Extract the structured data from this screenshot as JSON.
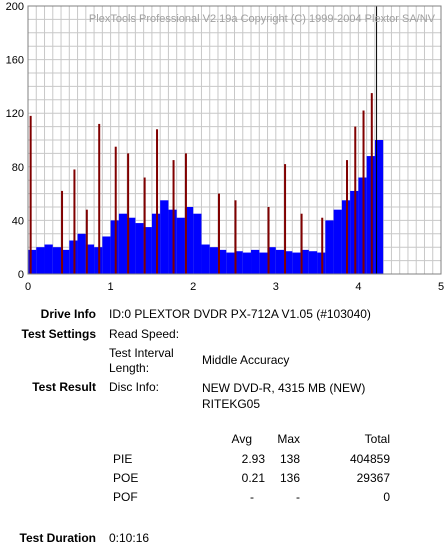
{
  "chart_data": {
    "type": "bar",
    "title": "PlexTools Professional V2.19a Copyright (C) 1999-2004 Plextor SA/NV",
    "xlim": [
      0,
      5
    ],
    "ylim": [
      0,
      200
    ],
    "x_ticks": [
      "0",
      "1",
      "2",
      "3",
      "4",
      "5"
    ],
    "y_ticks": [
      "0",
      "40",
      "80",
      "120",
      "160",
      "200"
    ],
    "grid": true,
    "end_x": 4.22,
    "series": [
      {
        "color": "#0000ff",
        "x": [
          0.0,
          0.1,
          0.2,
          0.3,
          0.4,
          0.5,
          0.6,
          0.7,
          0.8,
          0.9,
          1.0,
          1.1,
          1.2,
          1.3,
          1.4,
          1.5,
          1.6,
          1.7,
          1.8,
          1.9,
          2.0,
          2.1,
          2.2,
          2.3,
          2.4,
          2.5,
          2.6,
          2.7,
          2.8,
          2.9,
          3.0,
          3.1,
          3.2,
          3.3,
          3.4,
          3.5,
          3.6,
          3.7,
          3.8,
          3.9,
          4.0,
          4.1,
          4.2
        ],
        "values": [
          18,
          20,
          22,
          20,
          18,
          25,
          30,
          22,
          20,
          28,
          40,
          45,
          42,
          38,
          35,
          45,
          55,
          48,
          42,
          50,
          45,
          22,
          20,
          18,
          16,
          17,
          16,
          18,
          16,
          20,
          18,
          17,
          16,
          18,
          17,
          16,
          40,
          48,
          55,
          62,
          72,
          88,
          100
        ]
      },
      {
        "color": "#800000",
        "x": [
          0.02,
          0.4,
          0.55,
          0.7,
          0.85,
          1.05,
          1.2,
          1.4,
          1.55,
          1.75,
          1.9,
          2.3,
          2.5,
          2.9,
          3.1,
          3.3,
          3.55,
          3.85,
          3.95,
          4.05,
          4.15
        ],
        "values": [
          118,
          62,
          78,
          48,
          112,
          95,
          90,
          72,
          108,
          85,
          90,
          60,
          55,
          50,
          82,
          45,
          42,
          85,
          110,
          122,
          135
        ]
      }
    ]
  },
  "labels": {
    "drive_info": "Drive Info",
    "test_settings": "Test Settings",
    "test_result": "Test Result",
    "test_duration": "Test Duration"
  },
  "values": {
    "drive_info": "ID:0 PLEXTOR DVDR  PX-712A  V1.05 (#103040)",
    "read_speed_label": "Read Speed:",
    "test_interval_label": "Test Interval Length:",
    "test_interval_value": "Middle Accuracy",
    "disc_info_label": "Disc Info:",
    "disc_info_value": "NEW DVD-R, 4315 MB (NEW) RITEKG05",
    "test_duration": "0:10:16"
  },
  "results": {
    "headers": [
      "Avg",
      "Max",
      "Total"
    ],
    "rows": [
      {
        "name": "PIE",
        "avg": "2.93",
        "max": "138",
        "total": "404859"
      },
      {
        "name": "POE",
        "avg": "0.21",
        "max": "136",
        "total": "29367"
      },
      {
        "name": "POF",
        "avg": "-",
        "max": "-",
        "total": "0"
      }
    ]
  }
}
